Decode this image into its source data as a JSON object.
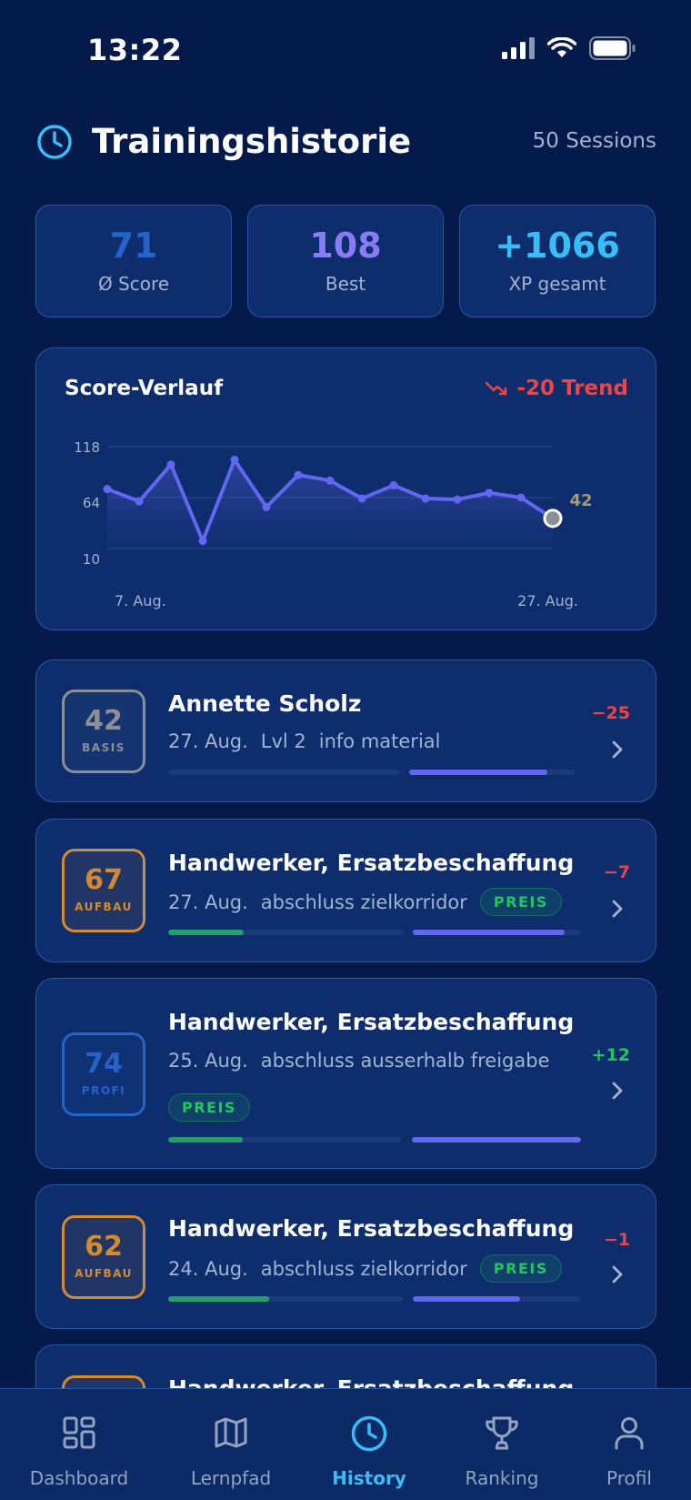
{
  "status_bar": {
    "time": "13:22"
  },
  "header": {
    "title": "Trainingshistorie",
    "sessions": "50 Sessions"
  },
  "stats": [
    {
      "value": "71",
      "label": "Ø Score",
      "color": "#2563c9"
    },
    {
      "value": "108",
      "label": "Best",
      "color": "#8b7cf6"
    },
    {
      "value": "+1066",
      "label": "XP gesamt",
      "color": "#38bdf8"
    }
  ],
  "chart": {
    "title": "Score-Verlauf",
    "trend": "-20 Trend",
    "last_label": "42",
    "x_start": "7. Aug.",
    "x_end": "27. Aug."
  },
  "chart_data": {
    "type": "line",
    "title": "Score-Verlauf",
    "y_ticks": [
      "118",
      "64",
      "10"
    ],
    "ylim": [
      10,
      118
    ],
    "x_labels": [
      "7. Aug.",
      "27. Aug."
    ],
    "series": [
      {
        "values": [
          73,
          60,
          99,
          18,
          104,
          54,
          88,
          82,
          63,
          77,
          63,
          62,
          69,
          64,
          42
        ]
      }
    ],
    "grid": true,
    "color": "#6366f1"
  },
  "sessions": [
    {
      "score": "42",
      "level": "BASIS",
      "name": "Annette Scholz",
      "date": "27. Aug.",
      "info1": "Lvl 2",
      "info2": "info material",
      "delta": "−25",
      "bar1": 0,
      "bar2": 0.83,
      "accent": "#8a8f98",
      "delta_color": "#ef4444"
    },
    {
      "score": "67",
      "level": "AUFBAU",
      "name": "Handwerker, Ersatzbeschaffung",
      "date": "27. Aug.",
      "info1": "abschluss zielkorridor",
      "tag": "PREIS",
      "delta": "−7",
      "bar1": 0.32,
      "bar2": 0.9,
      "accent": "#d48a2e",
      "delta_color": "#ef4444"
    },
    {
      "score": "74",
      "level": "PROFI",
      "name": "Handwerker, Ersatzbeschaffung",
      "date": "25. Aug.",
      "info1": "abschluss ausserhalb freigabe",
      "tag": "PREIS",
      "delta": "+12",
      "bar1": 0.32,
      "bar2": 1.0,
      "accent": "#2563c9",
      "delta_color": "#22c55e"
    },
    {
      "score": "62",
      "level": "AUFBAU",
      "name": "Handwerker, Ersatzbeschaffung",
      "date": "24. Aug.",
      "info1": "abschluss zielkorridor",
      "tag": "PREIS",
      "delta": "−1",
      "bar1": 0.43,
      "bar2": 0.64,
      "accent": "#d48a2e",
      "delta_color": "#ef4444"
    },
    {
      "name": "Handwerker, Ersatzbeschaffung",
      "accent": "#d48a2e"
    }
  ],
  "nav": [
    {
      "label": "Dashboard",
      "icon": "dashboard-icon"
    },
    {
      "label": "Lernpfad",
      "icon": "map-icon"
    },
    {
      "label": "History",
      "icon": "clock-icon",
      "active": true
    },
    {
      "label": "Ranking",
      "icon": "trophy-icon"
    },
    {
      "label": "Profil",
      "icon": "user-icon"
    }
  ]
}
